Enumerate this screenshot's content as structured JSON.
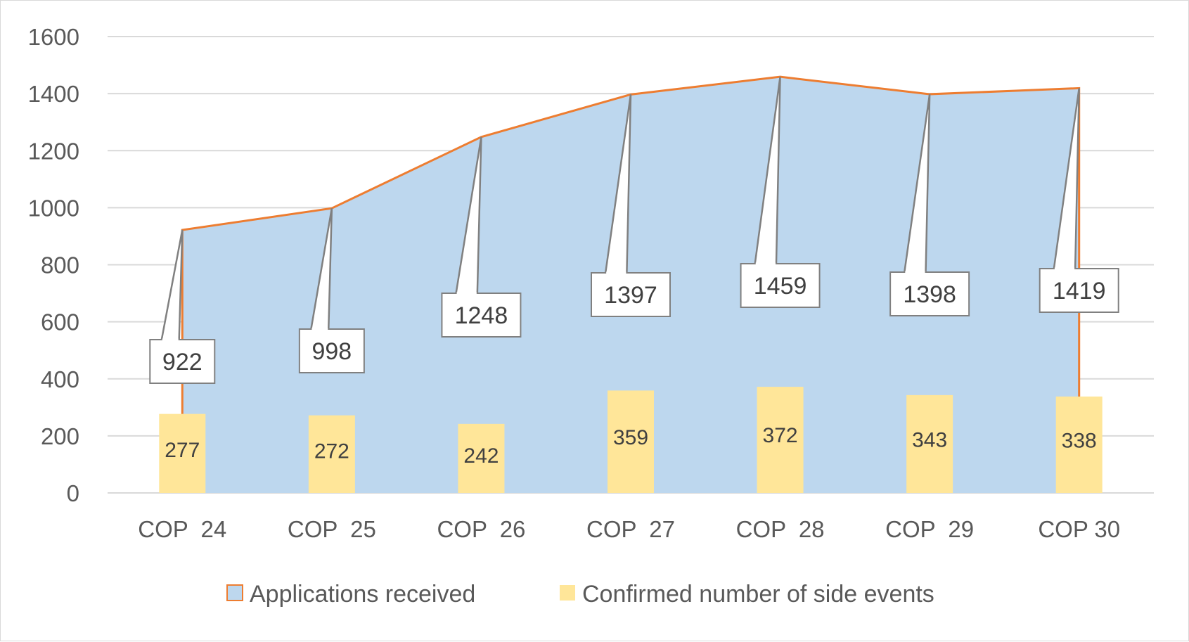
{
  "colors": {
    "area_fill": "#bdd7ee",
    "area_line": "#ed7d31",
    "bar_fill": "#ffe699",
    "grid": "#d9d9d9",
    "callout_border": "#808080"
  },
  "chart_data": {
    "type": "area",
    "categories": [
      "COP  24",
      "COP  25",
      "COP  26",
      "COP  27",
      "COP  28",
      "COP  29",
      "COP 30"
    ],
    "ylim": [
      0,
      1600
    ],
    "yticks": [
      0,
      200,
      400,
      600,
      800,
      1000,
      1200,
      1400,
      1600
    ],
    "grid": true,
    "legend_position": "bottom",
    "series": [
      {
        "name": "Applications received",
        "type": "area",
        "values": [
          922,
          998,
          1248,
          1397,
          1459,
          1398,
          1419
        ]
      },
      {
        "name": "Confirmed number of side events",
        "type": "bar",
        "values": [
          277,
          272,
          242,
          359,
          372,
          343,
          338
        ]
      }
    ]
  }
}
